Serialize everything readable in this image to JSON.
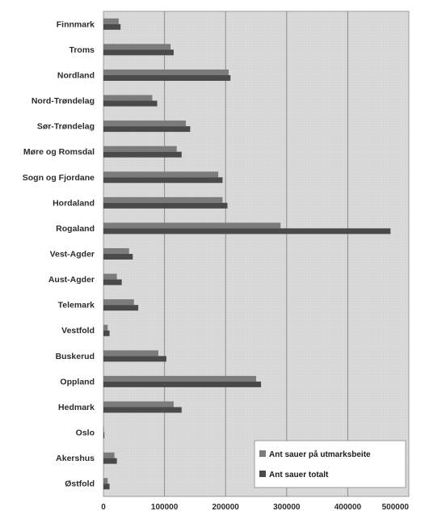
{
  "chart_data": {
    "type": "bar",
    "orientation": "horizontal",
    "categories": [
      "Finnmark",
      "Troms",
      "Nordland",
      "Nord-Trøndelag",
      "Sør-Trøndelag",
      "Møre og Romsdal",
      "Sogn og Fjordane",
      "Hordaland",
      "Rogaland",
      "Vest-Agder",
      "Aust-Agder",
      "Telemark",
      "Vestfold",
      "Buskerud",
      "Oppland",
      "Hedmark",
      "Oslo",
      "Akershus",
      "Østfold"
    ],
    "series": [
      {
        "name": "Antall sauer på utmarksbeite",
        "color": "#7b7b7b",
        "values": [
          25000,
          110000,
          205000,
          80000,
          135000,
          120000,
          188000,
          195000,
          290000,
          42000,
          22000,
          50000,
          7000,
          90000,
          250000,
          115000,
          1000,
          18000,
          7000
        ]
      },
      {
        "name": "Antall sauer totalt",
        "color": "#4a4a4a",
        "values": [
          28000,
          115000,
          208000,
          88000,
          142000,
          128000,
          195000,
          203000,
          470000,
          48000,
          30000,
          57000,
          10000,
          103000,
          258000,
          128000,
          1500,
          22000,
          10000
        ]
      }
    ],
    "xlim": [
      0,
      500000
    ],
    "xticks": [
      "0",
      "100000",
      "200000",
      "300000",
      "400000",
      "500000"
    ],
    "grid": true,
    "legend_position": "bottom-right",
    "legend_labels": [
      "Ant sauer på utmarksbeite",
      "Ant sauer totalt"
    ]
  }
}
